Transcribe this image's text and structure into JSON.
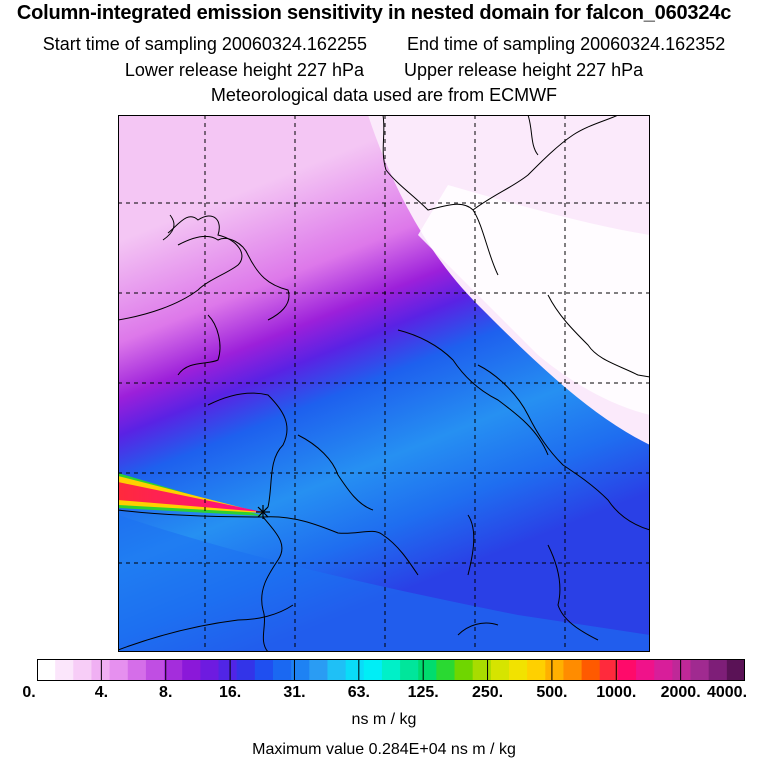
{
  "header": {
    "title": "Column-integrated emission sensitivity in nested domain for falcon_060324c",
    "start_label": "Start time of sampling 20060324.162255",
    "end_label": "End time of sampling 20060324.162352",
    "lower_label": "Lower release height  227 hPa",
    "upper_label": "Upper release height  227 hPa",
    "meteo_label": "Meteorological data used are from ECMWF"
  },
  "legend": {
    "tick_labels": [
      "0.",
      "4.",
      "8.",
      "16.",
      "31.",
      "63.",
      "125.",
      "250.",
      "500.",
      "1000.",
      "2000.",
      "4000."
    ],
    "colors": [
      "#ffffff",
      "#fbe6fb",
      "#f7cdf7",
      "#f0b0f3",
      "#e690ef",
      "#d56ee9",
      "#c04ee3",
      "#a42ddc",
      "#8b18d9",
      "#6e1be0",
      "#5125e6",
      "#3334e8",
      "#1f4ff0",
      "#1a68f2",
      "#1e82f3",
      "#2a9cf3",
      "#1fc0f6",
      "#0adcf8",
      "#00eef6",
      "#00f0c8",
      "#00e69b",
      "#00dc6e",
      "#2ad932",
      "#6fd600",
      "#a8dc00",
      "#d6e400",
      "#f2e200",
      "#ffd000",
      "#ffb000",
      "#ff8c00",
      "#ff5a00",
      "#ff2a3c",
      "#ff0a6a",
      "#f0128a",
      "#d81e9a",
      "#bf2898",
      "#a02a90",
      "#7e1e78",
      "#5a1256"
    ],
    "units": "ns m / kg",
    "max_value": "Maximum value  0.284E+04 ns m / kg"
  },
  "map": {
    "release_marker": "star-icon"
  }
}
